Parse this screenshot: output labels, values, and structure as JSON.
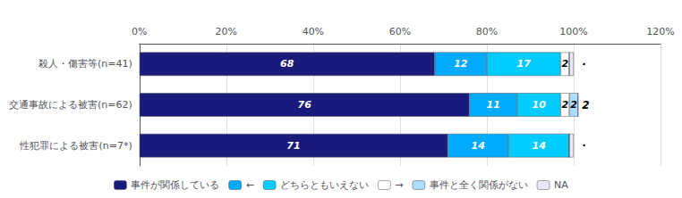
{
  "chart_data": {
    "type": "bar",
    "orientation": "horizontal",
    "stacked": true,
    "categories": [
      "殺人・傷害等(n=41)",
      "交通事故による被害(n=62)",
      "性犯罪による被害(n=7*)"
    ],
    "series": [
      {
        "name": "事件が関係している",
        "color": "#1a1a7c",
        "values": [
          68,
          76,
          71
        ],
        "value_labels": [
          "68",
          "76",
          "71"
        ]
      },
      {
        "name": "←",
        "color": "#00aaff",
        "values": [
          12,
          11,
          14
        ],
        "value_labels": [
          "12",
          "11",
          "14"
        ]
      },
      {
        "name": "どちらともいえない",
        "color": "#00ccff",
        "values": [
          17,
          10,
          14
        ],
        "value_labels": [
          "17",
          "10",
          "14"
        ]
      },
      {
        "name": "→",
        "color": "#ffffff",
        "values": [
          2,
          2,
          0
        ],
        "value_labels": [
          "2",
          "2",
          null
        ]
      },
      {
        "name": "事件と全く関係がない",
        "color": "#aaddff",
        "values": [
          0,
          2,
          0
        ],
        "value_labels": [
          null,
          "2",
          null
        ]
      },
      {
        "name": "NA",
        "color": "#e8e8f8",
        "values": [
          1,
          0,
          1
        ],
        "value_labels": [
          null,
          null,
          null
        ]
      }
    ],
    "data_labels": true,
    "xlim": [
      0,
      120
    ],
    "xticks": [
      {
        "value": 0,
        "label": "0%"
      },
      {
        "value": 20,
        "label": "20%"
      },
      {
        "value": 40,
        "label": "40%"
      },
      {
        "value": 60,
        "label": "60%"
      },
      {
        "value": 80,
        "label": "80%"
      },
      {
        "value": 100,
        "label": "100%"
      },
      {
        "value": 120,
        "label": "120%"
      }
    ],
    "grid": true,
    "legend": "bottom",
    "annotations": [
      {
        "category": "殺人・傷害等(n=41)",
        "x": 101.5,
        "text": "·"
      },
      {
        "category": "性犯罪による被害(n=7*)",
        "x": 101.5,
        "text": "·"
      },
      {
        "category": "交通事故による被害(n=62)",
        "x": 101.5,
        "text": "2"
      }
    ]
  }
}
